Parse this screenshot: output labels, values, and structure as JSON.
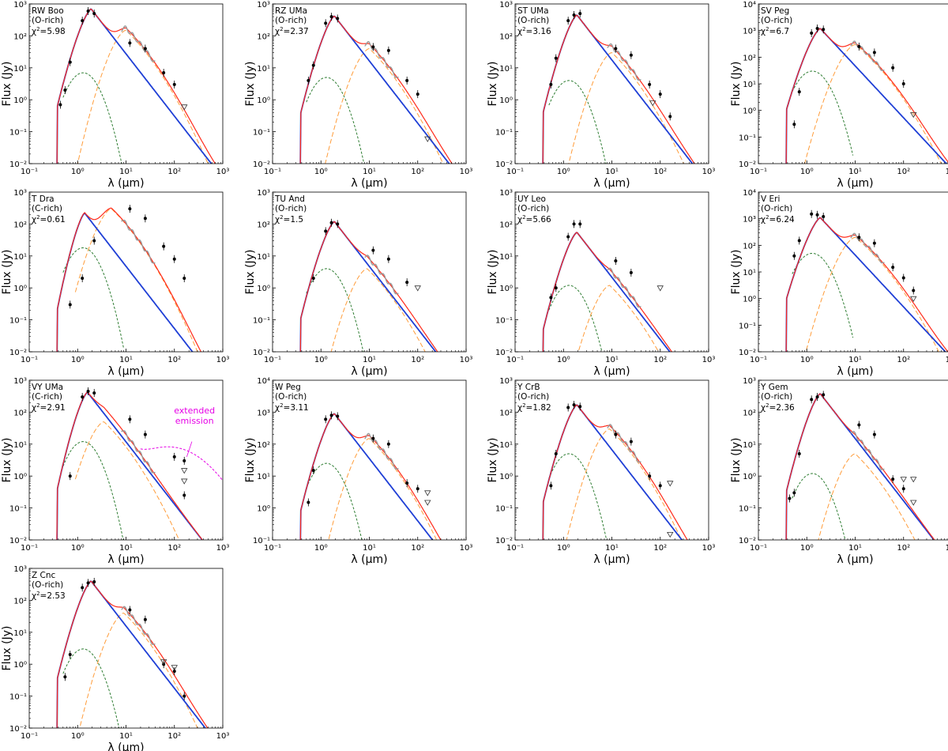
{
  "figure": {
    "xlabel": "λ (μm)",
    "ylabel": "Flux (Jy)",
    "xticks": [
      "10⁻¹",
      "10⁰",
      "10¹",
      "10²",
      "10³"
    ],
    "colors": {
      "model_total": "#ff2a1a",
      "photosphere": "#1f3fd6",
      "stellar_component": "#2e7d32",
      "dust_component": "#ff9c3a",
      "observed_spectrum": "#9a9a9a",
      "photometry": "#000000",
      "extended_emission": "#e600e6"
    }
  },
  "chart_data": [
    {
      "type": "line",
      "star": "RW Boo",
      "chem": "(O-rich)",
      "chi2": "5.98",
      "xlim": [
        0.1,
        1000
      ],
      "ylim": [
        0.01,
        1000
      ],
      "yticks": [
        "10⁻²",
        "10⁻¹",
        "10⁰",
        "10¹",
        "10²",
        "10³"
      ],
      "photosphere_peak_um": 1.9,
      "photosphere_peak_jy": 700,
      "dust_peak_um": 10,
      "dust_peak_jy": 150,
      "stellar_peak_jy": 7,
      "photometry": [
        [
          0.44,
          0.7
        ],
        [
          0.55,
          2
        ],
        [
          0.7,
          15
        ],
        [
          1.25,
          300
        ],
        [
          1.65,
          600
        ],
        [
          2.2,
          500
        ],
        [
          12,
          60
        ],
        [
          25,
          40
        ],
        [
          60,
          7
        ],
        [
          100,
          3
        ]
      ],
      "upper_limits": [
        [
          160,
          0.6
        ]
      ]
    },
    {
      "type": "line",
      "star": "RZ UMa",
      "chem": "(O-rich)",
      "chi2": "2.37",
      "xlim": [
        0.1,
        1000
      ],
      "ylim": [
        0.01,
        1000
      ],
      "yticks": [
        "10⁻²",
        "10⁻¹",
        "10⁰",
        "10¹",
        "10²",
        "10³"
      ],
      "photosphere_peak_um": 1.9,
      "photosphere_peak_jy": 420,
      "dust_peak_um": 10,
      "dust_peak_jy": 40,
      "stellar_peak_jy": 5,
      "photometry": [
        [
          0.55,
          4
        ],
        [
          0.7,
          12
        ],
        [
          1.25,
          250
        ],
        [
          1.65,
          400
        ],
        [
          2.2,
          350
        ],
        [
          12,
          45
        ],
        [
          25,
          35
        ],
        [
          60,
          4
        ],
        [
          100,
          1.5
        ]
      ],
      "upper_limits": [
        [
          160,
          0.06
        ]
      ]
    },
    {
      "type": "line",
      "star": "ST UMa",
      "chem": "(O-rich)",
      "chi2": "3.16",
      "xlim": [
        0.1,
        1000
      ],
      "ylim": [
        0.01,
        1000
      ],
      "yticks": [
        "10⁻²",
        "10⁻¹",
        "10⁰",
        "10¹",
        "10²",
        "10³"
      ],
      "photosphere_peak_um": 1.9,
      "photosphere_peak_jy": 450,
      "dust_peak_um": 10,
      "dust_peak_jy": 30,
      "stellar_peak_jy": 4,
      "photometry": [
        [
          0.55,
          3
        ],
        [
          0.7,
          20
        ],
        [
          1.25,
          300
        ],
        [
          1.65,
          450
        ],
        [
          2.2,
          500
        ],
        [
          12,
          40
        ],
        [
          25,
          25
        ],
        [
          60,
          3
        ],
        [
          100,
          1.5
        ],
        [
          160,
          0.3
        ]
      ],
      "upper_limits": [
        [
          70,
          0.8
        ]
      ]
    },
    {
      "type": "line",
      "star": "SV Peg",
      "chem": "(O-rich)",
      "chi2": "6.7",
      "xlim": [
        0.1,
        1000
      ],
      "ylim": [
        0.01,
        10000
      ],
      "yticks": [
        "10⁻²",
        "10⁻¹",
        "10⁰",
        "10¹",
        "10²",
        "10³",
        "10⁴"
      ],
      "photosphere_peak_um": 1.9,
      "photosphere_peak_jy": 1200,
      "dust_peak_um": 10,
      "dust_peak_jy": 300,
      "stellar_peak_jy": 30,
      "photometry": [
        [
          0.55,
          0.3
        ],
        [
          0.7,
          5
        ],
        [
          1.25,
          800
        ],
        [
          1.65,
          1200
        ],
        [
          2.2,
          1100
        ],
        [
          12,
          250
        ],
        [
          25,
          150
        ],
        [
          60,
          40
        ],
        [
          100,
          10
        ]
      ],
      "upper_limits": [
        [
          160,
          0.7
        ]
      ]
    },
    {
      "type": "line",
      "star": "T Dra",
      "chem": "(C-rich)",
      "chi2": "0.61",
      "xlim": [
        0.1,
        1000
      ],
      "ylim": [
        0.01,
        1000
      ],
      "yticks": [
        "10⁻²",
        "10⁻¹",
        "10⁰",
        "10¹",
        "10²",
        "10³"
      ],
      "photosphere_peak_um": 1.4,
      "photosphere_peak_jy": 220,
      "dust_peak_um": 5,
      "dust_peak_jy": 300,
      "stellar_peak_jy": 18,
      "photometry": [
        [
          0.7,
          0.3
        ],
        [
          1.25,
          2
        ],
        [
          2.2,
          30
        ],
        [
          12,
          300
        ],
        [
          25,
          150
        ],
        [
          60,
          20
        ],
        [
          100,
          8
        ],
        [
          160,
          2
        ]
      ],
      "upper_limits": []
    },
    {
      "type": "line",
      "star": "TU And",
      "chem": "(O-rich)",
      "chi2": "1.5",
      "xlim": [
        0.1,
        1000
      ],
      "ylim": [
        0.01,
        1000
      ],
      "yticks": [
        "10⁻²",
        "10⁻¹",
        "10⁰",
        "10¹",
        "10²",
        "10³"
      ],
      "photosphere_peak_um": 1.9,
      "photosphere_peak_jy": 120,
      "dust_peak_um": 9,
      "dust_peak_jy": 4,
      "stellar_peak_jy": 4,
      "photometry": [
        [
          0.7,
          2
        ],
        [
          1.25,
          60
        ],
        [
          1.65,
          110
        ],
        [
          2.2,
          100
        ],
        [
          12,
          15
        ],
        [
          25,
          8
        ],
        [
          60,
          1.5
        ]
      ],
      "upper_limits": [
        [
          100,
          1
        ]
      ]
    },
    {
      "type": "line",
      "star": "UY Leo",
      "chem": "(O-rich)",
      "chi2": "5.66",
      "xlim": [
        0.1,
        1000
      ],
      "ylim": [
        0.01,
        1000
      ],
      "yticks": [
        "10⁻²",
        "10⁻¹",
        "10⁰",
        "10¹",
        "10²",
        "10³"
      ],
      "photosphere_peak_um": 1.9,
      "photosphere_peak_jy": 55,
      "dust_peak_um": 9,
      "dust_peak_jy": 1.2,
      "stellar_peak_jy": 1.2,
      "photometry": [
        [
          0.55,
          0.5
        ],
        [
          0.7,
          1
        ],
        [
          1.25,
          40
        ],
        [
          1.65,
          100
        ],
        [
          2.2,
          100
        ],
        [
          12,
          7
        ],
        [
          25,
          3
        ]
      ],
      "upper_limits": [
        [
          100,
          1
        ]
      ]
    },
    {
      "type": "line",
      "star": "V Eri",
      "chem": "(O-rich)",
      "chi2": "6.24",
      "xlim": [
        0.1,
        1000
      ],
      "ylim": [
        0.01,
        10000
      ],
      "yticks": [
        "10⁻²",
        "10⁻¹",
        "10⁰",
        "10¹",
        "10²",
        "10³",
        "10⁴"
      ],
      "photosphere_peak_um": 1.9,
      "photosphere_peak_jy": 1100,
      "dust_peak_um": 10,
      "dust_peak_jy": 200,
      "stellar_peak_jy": 50,
      "photometry": [
        [
          0.55,
          40
        ],
        [
          0.7,
          150
        ],
        [
          1.25,
          1500
        ],
        [
          1.65,
          1400
        ],
        [
          2.2,
          1200
        ],
        [
          12,
          200
        ],
        [
          25,
          120
        ],
        [
          60,
          15
        ],
        [
          100,
          6
        ],
        [
          160,
          2
        ]
      ],
      "upper_limits": [
        [
          160,
          1
        ]
      ]
    },
    {
      "type": "line",
      "star": "VY UMa",
      "chem": "(C-rich)",
      "chi2": "2.91",
      "xlim": [
        0.1,
        1000
      ],
      "ylim": [
        0.01,
        1000
      ],
      "yticks": [
        "10⁻²",
        "10⁻¹",
        "10⁰",
        "10¹",
        "10²",
        "10³"
      ],
      "photosphere_peak_um": 1.6,
      "photosphere_peak_jy": 420,
      "dust_peak_um": 3.5,
      "dust_peak_jy": 50,
      "stellar_peak_jy": 12,
      "photometry": [
        [
          0.7,
          1
        ],
        [
          1.25,
          300
        ],
        [
          1.65,
          450
        ],
        [
          2.2,
          400
        ],
        [
          12,
          60
        ],
        [
          25,
          20
        ],
        [
          100,
          4
        ],
        [
          160,
          3
        ],
        [
          160,
          0.25
        ]
      ],
      "upper_limits": [
        [
          160,
          1.5
        ],
        [
          160,
          0.7
        ]
      ],
      "annotation": "extended\nemission"
    },
    {
      "type": "line",
      "star": "W Peg",
      "chem": "(O-rich)",
      "chi2": "3.11",
      "xlim": [
        0.1,
        1000
      ],
      "ylim": [
        0.1,
        10000
      ],
      "yticks": [
        "10⁻¹",
        "10⁰",
        "10¹",
        "10²",
        "10³",
        "10⁴"
      ],
      "photosphere_peak_um": 1.9,
      "photosphere_peak_jy": 900,
      "dust_peak_um": 10,
      "dust_peak_jy": 150,
      "stellar_peak_jy": 25,
      "photometry": [
        [
          0.55,
          1.5
        ],
        [
          0.7,
          15
        ],
        [
          1.25,
          600
        ],
        [
          1.65,
          800
        ],
        [
          2.2,
          750
        ],
        [
          12,
          150
        ],
        [
          25,
          100
        ],
        [
          60,
          6
        ],
        [
          100,
          4
        ]
      ],
      "upper_limits": [
        [
          160,
          3
        ],
        [
          160,
          1.5
        ]
      ]
    },
    {
      "type": "line",
      "star": "Y CrB",
      "chem": "(O-rich)",
      "chi2": "1.82",
      "xlim": [
        0.1,
        1000
      ],
      "ylim": [
        0.01,
        1000
      ],
      "yticks": [
        "10⁻²",
        "10⁻¹",
        "10⁰",
        "10¹",
        "10²",
        "10³"
      ],
      "photosphere_peak_um": 1.9,
      "photosphere_peak_jy": 170,
      "dust_peak_um": 9,
      "dust_peak_jy": 30,
      "stellar_peak_jy": 5,
      "photometry": [
        [
          0.55,
          0.5
        ],
        [
          0.7,
          5
        ],
        [
          1.25,
          140
        ],
        [
          1.65,
          170
        ],
        [
          2.2,
          150
        ],
        [
          12,
          20
        ],
        [
          25,
          12
        ],
        [
          60,
          1
        ],
        [
          100,
          0.5
        ]
      ],
      "upper_limits": [
        [
          160,
          0.6
        ],
        [
          160,
          0.015
        ]
      ]
    },
    {
      "type": "line",
      "star": "Y Gem",
      "chem": "(O-rich)",
      "chi2": "2.36",
      "xlim": [
        0.1,
        1000
      ],
      "ylim": [
        0.01,
        1000
      ],
      "yticks": [
        "10⁻²",
        "10⁻¹",
        "10⁰",
        "10¹",
        "10²",
        "10³"
      ],
      "photosphere_peak_um": 1.9,
      "photosphere_peak_jy": 380,
      "dust_peak_um": 10,
      "dust_peak_jy": 5,
      "stellar_peak_jy": 1.2,
      "photometry": [
        [
          0.44,
          0.2
        ],
        [
          0.55,
          0.3
        ],
        [
          0.7,
          5
        ],
        [
          1.25,
          250
        ],
        [
          1.65,
          300
        ],
        [
          2.2,
          350
        ],
        [
          12,
          40
        ],
        [
          25,
          20
        ],
        [
          60,
          0.8
        ],
        [
          100,
          0.4
        ]
      ],
      "upper_limits": [
        [
          100,
          0.8
        ],
        [
          160,
          0.8
        ],
        [
          160,
          0.15
        ]
      ]
    },
    {
      "type": "line",
      "star": "Z Cnc",
      "chem": "(O-rich)",
      "chi2": "2.53",
      "xlim": [
        0.1,
        1000
      ],
      "ylim": [
        0.01,
        1000
      ],
      "yticks": [
        "10⁻²",
        "10⁻¹",
        "10⁰",
        "10¹",
        "10²",
        "10³"
      ],
      "photosphere_peak_um": 1.9,
      "photosphere_peak_jy": 400,
      "dust_peak_um": 9,
      "dust_peak_jy": 40,
      "stellar_peak_jy": 3,
      "photometry": [
        [
          0.55,
          0.4
        ],
        [
          0.7,
          2
        ],
        [
          1.25,
          250
        ],
        [
          1.65,
          350
        ],
        [
          2.2,
          380
        ],
        [
          12,
          50
        ],
        [
          25,
          25
        ],
        [
          60,
          1
        ],
        [
          100,
          0.6
        ],
        [
          160,
          0.1
        ]
      ],
      "upper_limits": [
        [
          60,
          1.2
        ],
        [
          100,
          0.8
        ]
      ]
    }
  ]
}
